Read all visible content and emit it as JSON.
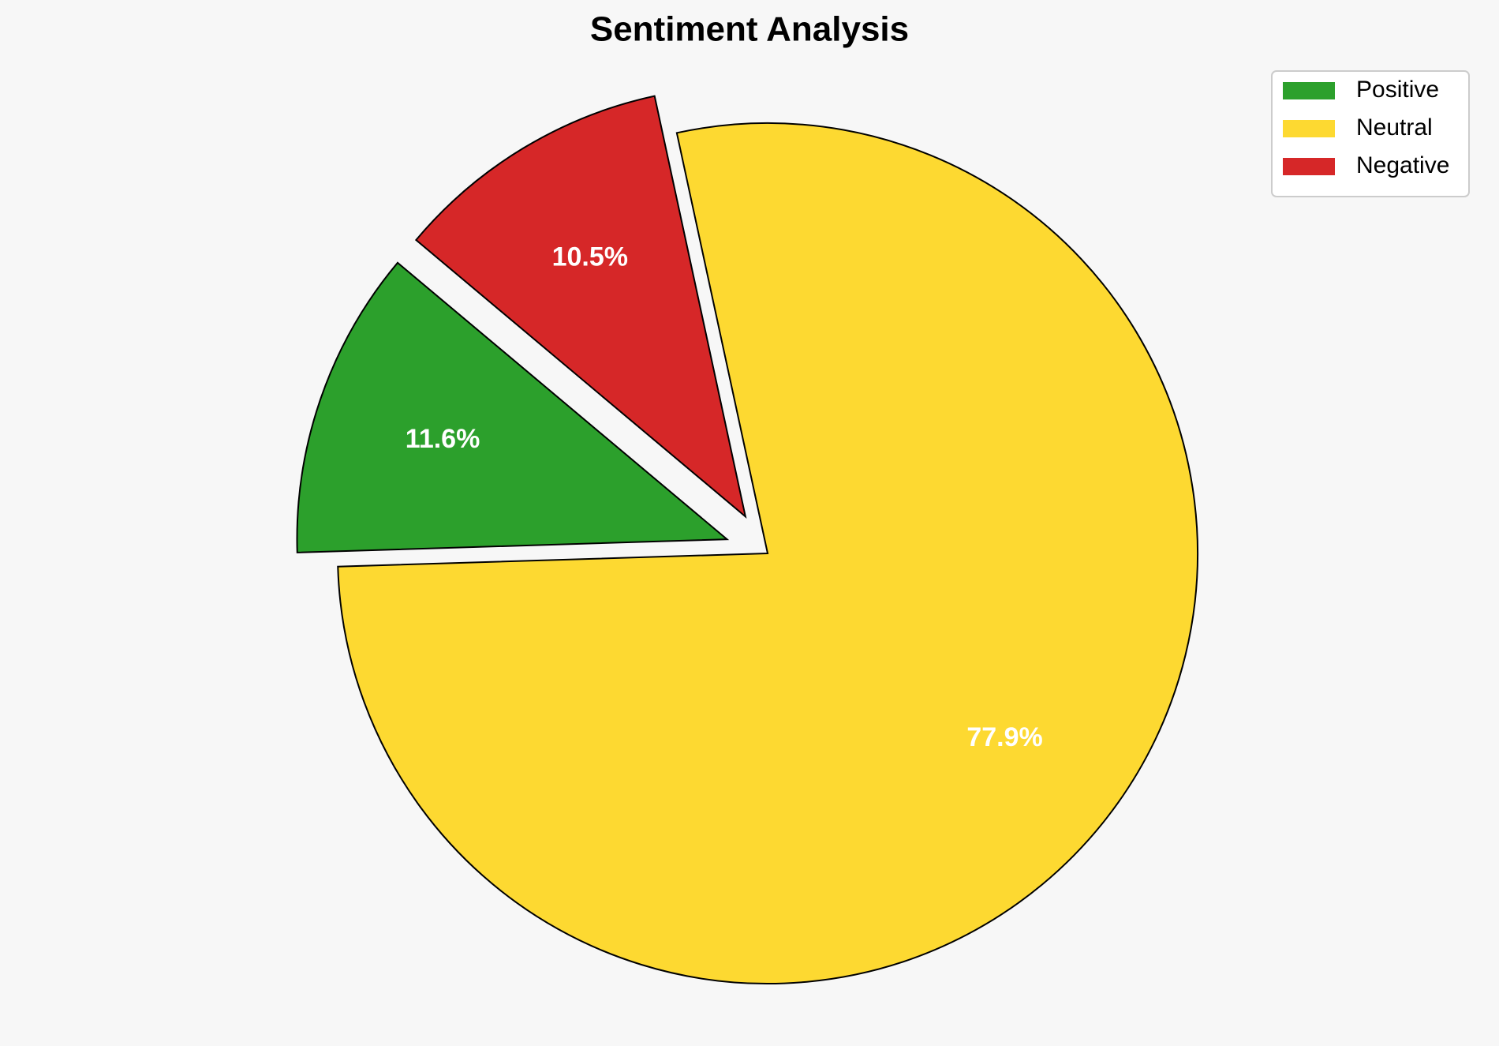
{
  "chart_data": {
    "type": "pie",
    "title": "Sentiment Analysis",
    "categories": [
      "Positive",
      "Neutral",
      "Negative"
    ],
    "values": [
      11.6,
      77.9,
      10.5
    ],
    "value_labels": [
      "11.6%",
      "77.9%",
      "10.5%"
    ],
    "colors": [
      "#2ca02c",
      "#fdd931",
      "#d62728"
    ],
    "explode": [
      0.1,
      0,
      0.1
    ],
    "startangle": 140,
    "legend": "upper right"
  }
}
